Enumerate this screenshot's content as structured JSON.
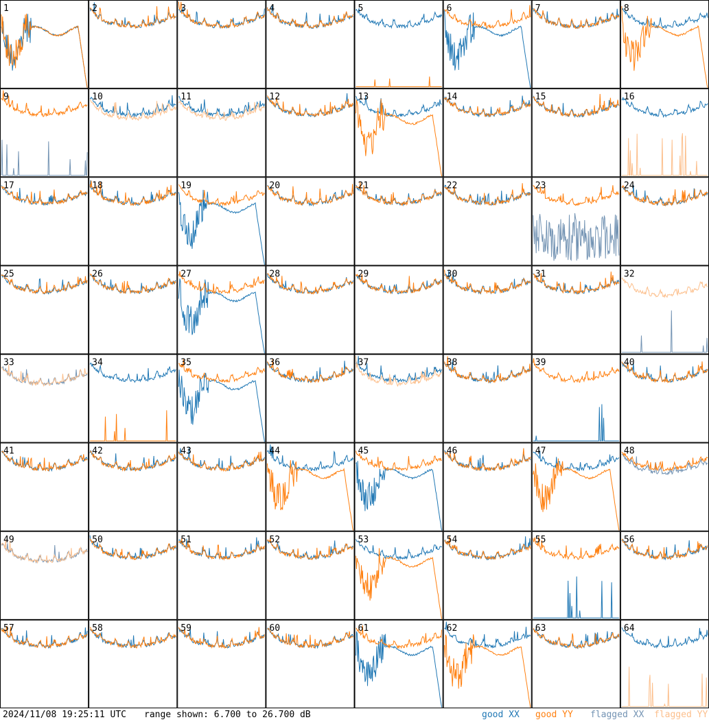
{
  "footer": {
    "timestamp": "2024/11/08 19:25:11 UTC",
    "range_text": "range shown: 6.700 to 26.700 dB",
    "legend": [
      "good XX",
      "good YY",
      "flagged XX",
      "flagged YY"
    ]
  },
  "colors": {
    "good_xx": "#1f77b4",
    "good_yy": "#ff7f0e",
    "flagged_xx": "#7393b3",
    "flagged_yy": "#fcbf8c",
    "grid": "#000000"
  },
  "chart_data": {
    "type": "line",
    "title": "",
    "xlabel": "",
    "ylabel": "",
    "ylim": [
      6.7,
      26.7
    ],
    "rows": 8,
    "cols": 8,
    "panels": [
      {
        "id": "1",
        "xx": "droop",
        "yy": "droop"
      },
      {
        "id": "2",
        "xx": "good",
        "yy": "good"
      },
      {
        "id": "3",
        "xx": "good",
        "yy": "good"
      },
      {
        "id": "4",
        "xx": "good",
        "yy": "good"
      },
      {
        "id": "5",
        "xx": "good",
        "yy": "flat_low"
      },
      {
        "id": "6",
        "xx": "droop",
        "yy": "good"
      },
      {
        "id": "7",
        "xx": "good",
        "yy": "good"
      },
      {
        "id": "8",
        "xx": "good",
        "yy": "droop"
      },
      {
        "id": "9",
        "xx": "flagged_low",
        "yy": "good"
      },
      {
        "id": "10",
        "xx": "good",
        "yy": "flagged"
      },
      {
        "id": "11",
        "xx": "good",
        "yy": "flagged"
      },
      {
        "id": "12",
        "xx": "good",
        "yy": "good"
      },
      {
        "id": "13",
        "xx": "good",
        "yy": "droop"
      },
      {
        "id": "14",
        "xx": "good",
        "yy": "good"
      },
      {
        "id": "15",
        "xx": "good",
        "yy": "good"
      },
      {
        "id": "16",
        "xx": "good",
        "yy": "flagged_low"
      },
      {
        "id": "17",
        "xx": "good",
        "yy": "good"
      },
      {
        "id": "18",
        "xx": "good",
        "yy": "good"
      },
      {
        "id": "19",
        "xx": "droop",
        "yy": "good"
      },
      {
        "id": "20",
        "xx": "good",
        "yy": "good"
      },
      {
        "id": "21",
        "xx": "good",
        "yy": "good"
      },
      {
        "id": "22",
        "xx": "good",
        "yy": "good"
      },
      {
        "id": "23",
        "xx": "flagged_noise",
        "yy": "good"
      },
      {
        "id": "24",
        "xx": "good",
        "yy": "good"
      },
      {
        "id": "25",
        "xx": "good",
        "yy": "good"
      },
      {
        "id": "26",
        "xx": "good",
        "yy": "good"
      },
      {
        "id": "27",
        "xx": "droop",
        "yy": "good"
      },
      {
        "id": "28",
        "xx": "good",
        "yy": "good"
      },
      {
        "id": "29",
        "xx": "good",
        "yy": "good"
      },
      {
        "id": "30",
        "xx": "good",
        "yy": "good"
      },
      {
        "id": "31",
        "xx": "good",
        "yy": "good"
      },
      {
        "id": "32",
        "xx": "flagged_low",
        "yy": "flagged"
      },
      {
        "id": "33",
        "xx": "flagged",
        "yy": "flagged"
      },
      {
        "id": "34",
        "xx": "good",
        "yy": "flat_low"
      },
      {
        "id": "35",
        "xx": "droop",
        "yy": "good"
      },
      {
        "id": "36",
        "xx": "good",
        "yy": "good"
      },
      {
        "id": "37",
        "xx": "good",
        "yy": "flagged"
      },
      {
        "id": "38",
        "xx": "good",
        "yy": "good"
      },
      {
        "id": "39",
        "xx": "flat_low",
        "yy": "good"
      },
      {
        "id": "40",
        "xx": "good",
        "yy": "good"
      },
      {
        "id": "41",
        "xx": "good",
        "yy": "good"
      },
      {
        "id": "42",
        "xx": "good",
        "yy": "good"
      },
      {
        "id": "43",
        "xx": "good",
        "yy": "good"
      },
      {
        "id": "44",
        "xx": "good",
        "yy": "droop"
      },
      {
        "id": "45",
        "xx": "droop",
        "yy": "good"
      },
      {
        "id": "46",
        "xx": "good",
        "yy": "good"
      },
      {
        "id": "47",
        "xx": "good",
        "yy": "droop"
      },
      {
        "id": "48",
        "xx": "flagged",
        "yy": "good"
      },
      {
        "id": "49",
        "xx": "flagged",
        "yy": "flagged"
      },
      {
        "id": "50",
        "xx": "good",
        "yy": "good"
      },
      {
        "id": "51",
        "xx": "good",
        "yy": "good"
      },
      {
        "id": "52",
        "xx": "good",
        "yy": "good"
      },
      {
        "id": "53",
        "xx": "good",
        "yy": "droop"
      },
      {
        "id": "54",
        "xx": "good",
        "yy": "good"
      },
      {
        "id": "55",
        "xx": "flat_low",
        "yy": "good"
      },
      {
        "id": "56",
        "xx": "good",
        "yy": "good"
      },
      {
        "id": "57",
        "xx": "good",
        "yy": "good"
      },
      {
        "id": "58",
        "xx": "good",
        "yy": "good"
      },
      {
        "id": "59",
        "xx": "good",
        "yy": "good"
      },
      {
        "id": "60",
        "xx": "good",
        "yy": "good"
      },
      {
        "id": "61",
        "xx": "droop",
        "yy": "good"
      },
      {
        "id": "62",
        "xx": "good",
        "yy": "droop"
      },
      {
        "id": "63",
        "xx": "good",
        "yy": "good"
      },
      {
        "id": "64",
        "xx": "good",
        "yy": "flagged_low"
      }
    ]
  }
}
